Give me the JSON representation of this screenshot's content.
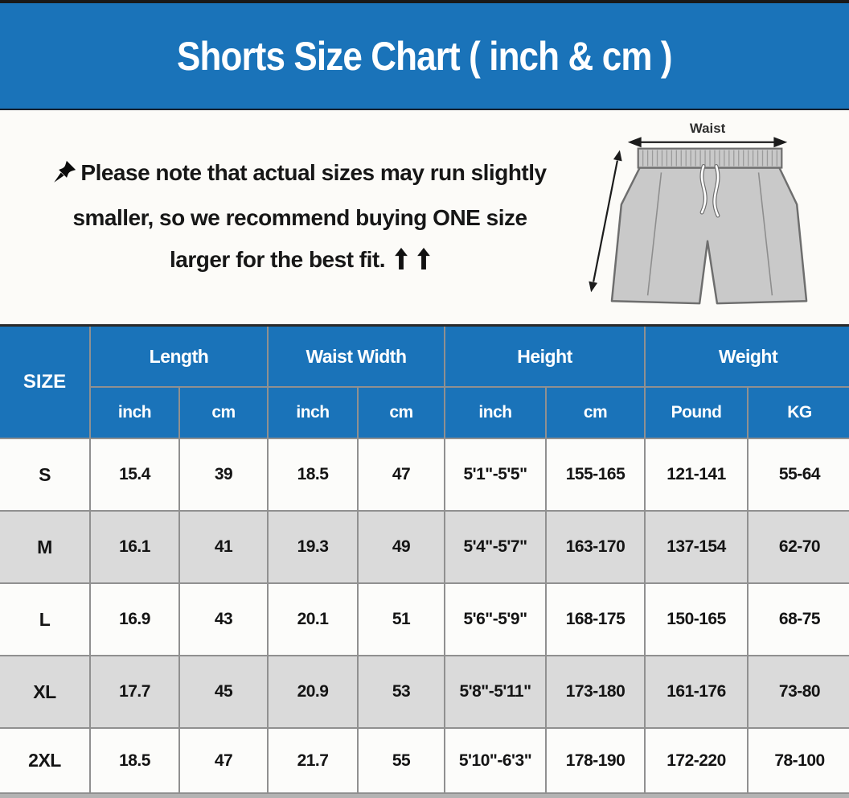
{
  "banner": {
    "title": "Shorts Size Chart ( inch & cm )"
  },
  "note": {
    "icon": "pushpin-icon",
    "line1": "Please note that actual sizes may run slightly",
    "line2": "smaller, so we recommend buying ONE size",
    "line3": "larger for the best fit.",
    "arrow_icon": "up-arrow-icon",
    "arrow_count": 2
  },
  "illustration": {
    "waist_label": "Waist"
  },
  "table": {
    "header": {
      "size_label": "SIZE",
      "groups": [
        {
          "label": "Length",
          "sub": [
            "inch",
            "cm"
          ]
        },
        {
          "label": "Waist Width",
          "sub": [
            "inch",
            "cm"
          ]
        },
        {
          "label": "Height",
          "sub": [
            "inch",
            "cm"
          ]
        },
        {
          "label": "Weight",
          "sub": [
            "Pound",
            "KG"
          ]
        }
      ]
    }
  },
  "colors": {
    "banner_blue": "#1a73b9",
    "row_gray": "#dadada",
    "row_white": "#fcfcfa",
    "grid_gray": "#909090",
    "shorts_fill": "#c9c9c9"
  },
  "chart_data": {
    "type": "table",
    "title": "Shorts Size Chart ( inch & cm )",
    "note": "Please note that actual sizes may run slightly smaller, so we recommend buying ONE size larger for the best fit.",
    "columns": [
      "SIZE",
      "Length inch",
      "Length cm",
      "Waist Width inch",
      "Waist Width cm",
      "Height inch",
      "Height cm",
      "Weight Pound",
      "Weight KG"
    ],
    "rows": [
      {
        "size": "S",
        "values": [
          "15.4",
          "39",
          "18.5",
          "47",
          "5'1\"-5'5\"",
          "155-165",
          "121-141",
          "55-64"
        ]
      },
      {
        "size": "M",
        "values": [
          "16.1",
          "41",
          "19.3",
          "49",
          "5'4\"-5'7\"",
          "163-170",
          "137-154",
          "62-70"
        ]
      },
      {
        "size": "L",
        "values": [
          "16.9",
          "43",
          "20.1",
          "51",
          "5'6\"-5'9\"",
          "168-175",
          "150-165",
          "68-75"
        ]
      },
      {
        "size": "XL",
        "values": [
          "17.7",
          "45",
          "20.9",
          "53",
          "5'8\"-5'11\"",
          "173-180",
          "161-176",
          "73-80"
        ]
      },
      {
        "size": "2XL",
        "values": [
          "18.5",
          "47",
          "21.7",
          "55",
          "5'10\"-6'3\"",
          "178-190",
          "172-220",
          "78-100"
        ]
      }
    ]
  }
}
